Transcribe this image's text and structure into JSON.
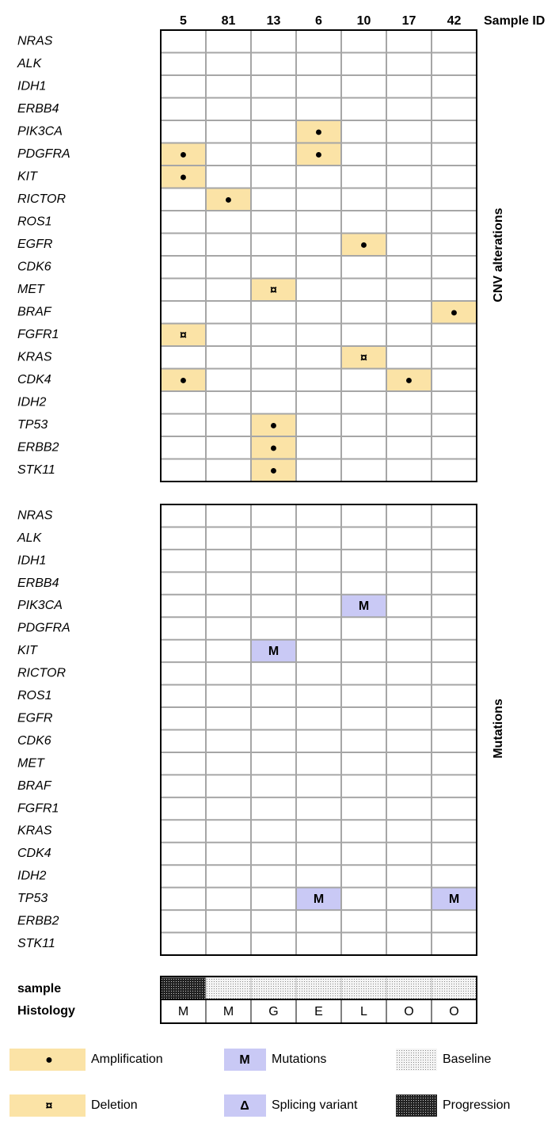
{
  "header": {
    "samples": [
      "5",
      "81",
      "13",
      "6",
      "10",
      "17",
      "42"
    ],
    "label": "Sample ID"
  },
  "cnv": {
    "title": "CNV alterations",
    "rows": [
      {
        "gene": "NRAS",
        "cells": [
          null,
          null,
          null,
          null,
          null,
          null,
          null
        ]
      },
      {
        "gene": "ALK",
        "cells": [
          null,
          null,
          null,
          null,
          null,
          null,
          null
        ]
      },
      {
        "gene": "IDH1",
        "cells": [
          null,
          null,
          null,
          null,
          null,
          null,
          null
        ]
      },
      {
        "gene": "ERBB4",
        "cells": [
          null,
          null,
          null,
          null,
          null,
          null,
          null
        ]
      },
      {
        "gene": "PIK3CA",
        "cells": [
          null,
          null,
          null,
          "●",
          null,
          null,
          null
        ]
      },
      {
        "gene": "PDGFRA",
        "cells": [
          "●",
          null,
          null,
          "●",
          null,
          null,
          null
        ]
      },
      {
        "gene": "KIT",
        "cells": [
          "●",
          null,
          null,
          null,
          null,
          null,
          null
        ]
      },
      {
        "gene": "RICTOR",
        "cells": [
          null,
          "●",
          null,
          null,
          null,
          null,
          null
        ]
      },
      {
        "gene": "ROS1",
        "cells": [
          null,
          null,
          null,
          null,
          null,
          null,
          null
        ]
      },
      {
        "gene": "EGFR",
        "cells": [
          null,
          null,
          null,
          null,
          "●",
          null,
          null
        ]
      },
      {
        "gene": "CDK6",
        "cells": [
          null,
          null,
          null,
          null,
          null,
          null,
          null
        ]
      },
      {
        "gene": "MET",
        "cells": [
          null,
          null,
          "¤",
          null,
          null,
          null,
          null
        ]
      },
      {
        "gene": "BRAF",
        "cells": [
          null,
          null,
          null,
          null,
          null,
          null,
          "●"
        ]
      },
      {
        "gene": "FGFR1",
        "cells": [
          "¤",
          null,
          null,
          null,
          null,
          null,
          null
        ]
      },
      {
        "gene": "KRAS",
        "cells": [
          null,
          null,
          null,
          null,
          "¤",
          null,
          null
        ]
      },
      {
        "gene": "CDK4",
        "cells": [
          "●",
          null,
          null,
          null,
          null,
          "●",
          null
        ]
      },
      {
        "gene": "IDH2",
        "cells": [
          null,
          null,
          null,
          null,
          null,
          null,
          null
        ]
      },
      {
        "gene": "TP53",
        "cells": [
          null,
          null,
          "●",
          null,
          null,
          null,
          null
        ]
      },
      {
        "gene": "ERBB2",
        "cells": [
          null,
          null,
          "●",
          null,
          null,
          null,
          null
        ]
      },
      {
        "gene": "STK11",
        "cells": [
          null,
          null,
          "●",
          null,
          null,
          null,
          null
        ]
      }
    ]
  },
  "mutations": {
    "title": "Mutations",
    "rows": [
      {
        "gene": "NRAS",
        "cells": [
          null,
          null,
          null,
          null,
          null,
          null,
          null
        ]
      },
      {
        "gene": "ALK",
        "cells": [
          null,
          null,
          null,
          null,
          null,
          null,
          null
        ]
      },
      {
        "gene": "IDH1",
        "cells": [
          null,
          null,
          null,
          null,
          null,
          null,
          null
        ]
      },
      {
        "gene": "ERBB4",
        "cells": [
          null,
          null,
          null,
          null,
          null,
          null,
          null
        ]
      },
      {
        "gene": "PIK3CA",
        "cells": [
          null,
          null,
          null,
          null,
          "M",
          null,
          null
        ]
      },
      {
        "gene": "PDGFRA",
        "cells": [
          null,
          null,
          null,
          null,
          null,
          null,
          null
        ]
      },
      {
        "gene": "KIT",
        "cells": [
          null,
          null,
          "M",
          null,
          null,
          null,
          null
        ]
      },
      {
        "gene": "RICTOR",
        "cells": [
          null,
          null,
          null,
          null,
          null,
          null,
          null
        ]
      },
      {
        "gene": "ROS1",
        "cells": [
          null,
          null,
          null,
          null,
          null,
          null,
          null
        ]
      },
      {
        "gene": "EGFR",
        "cells": [
          null,
          null,
          null,
          null,
          null,
          null,
          null
        ]
      },
      {
        "gene": "CDK6",
        "cells": [
          null,
          null,
          null,
          null,
          null,
          null,
          null
        ]
      },
      {
        "gene": "MET",
        "cells": [
          null,
          null,
          null,
          null,
          null,
          null,
          null
        ]
      },
      {
        "gene": "BRAF",
        "cells": [
          null,
          null,
          null,
          null,
          null,
          null,
          null
        ]
      },
      {
        "gene": "FGFR1",
        "cells": [
          null,
          null,
          null,
          null,
          null,
          null,
          null
        ]
      },
      {
        "gene": "KRAS",
        "cells": [
          null,
          null,
          null,
          null,
          null,
          null,
          null
        ]
      },
      {
        "gene": "CDK4",
        "cells": [
          null,
          null,
          null,
          null,
          null,
          null,
          null
        ]
      },
      {
        "gene": "IDH2",
        "cells": [
          null,
          null,
          null,
          null,
          null,
          null,
          null
        ]
      },
      {
        "gene": "TP53",
        "cells": [
          null,
          null,
          null,
          "M",
          null,
          null,
          "M"
        ]
      },
      {
        "gene": "ERBB2",
        "cells": [
          null,
          null,
          null,
          null,
          null,
          null,
          null
        ]
      },
      {
        "gene": "STK11",
        "cells": [
          null,
          null,
          null,
          null,
          null,
          null,
          null
        ]
      }
    ]
  },
  "sample_row": {
    "label": "sample"
  },
  "histology": {
    "label": "Histology",
    "values": [
      "M",
      "M",
      "G",
      "E",
      "L",
      "O",
      "O"
    ]
  },
  "legend": [
    {
      "symbol": "●",
      "label": "Amplification"
    },
    {
      "symbol": "M",
      "label": "Mutations"
    },
    {
      "label": "Baseline"
    },
    {
      "symbol": "¤",
      "label": "Deletion"
    },
    {
      "symbol": "Δ",
      "label": "Splicing variant"
    },
    {
      "label": "Progression"
    }
  ]
}
